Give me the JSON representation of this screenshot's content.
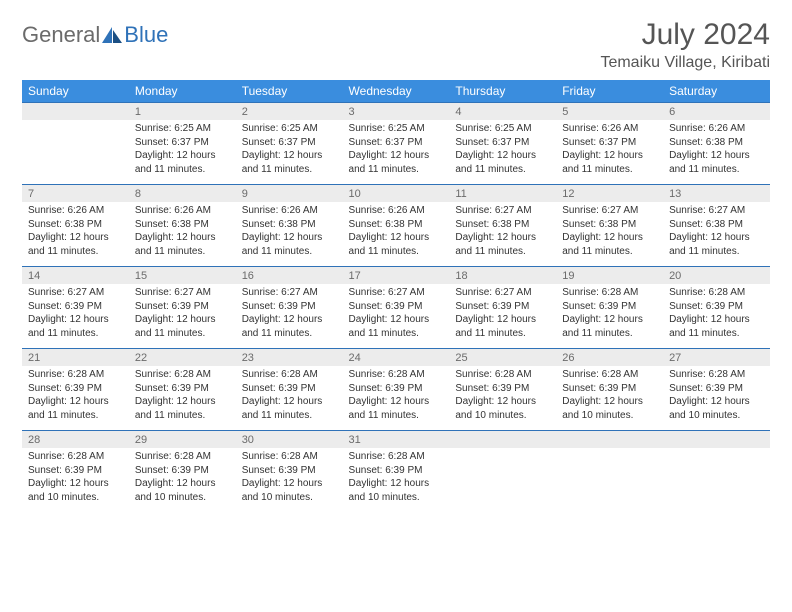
{
  "brand": {
    "part1": "General",
    "part2": "Blue"
  },
  "title": "July 2024",
  "location": "Temaiku Village, Kiribati",
  "colors": {
    "header_bg": "#3a8dde",
    "accent": "#2f72b8",
    "daynum_bg": "#ececec",
    "text": "#333333",
    "muted": "#6b6b6b"
  },
  "day_names": [
    "Sunday",
    "Monday",
    "Tuesday",
    "Wednesday",
    "Thursday",
    "Friday",
    "Saturday"
  ],
  "weeks": [
    {
      "nums": [
        "",
        "1",
        "2",
        "3",
        "4",
        "5",
        "6"
      ],
      "cells": [
        null,
        {
          "sr": "6:25 AM",
          "ss": "6:37 PM",
          "dl": "12 hours and 11 minutes."
        },
        {
          "sr": "6:25 AM",
          "ss": "6:37 PM",
          "dl": "12 hours and 11 minutes."
        },
        {
          "sr": "6:25 AM",
          "ss": "6:37 PM",
          "dl": "12 hours and 11 minutes."
        },
        {
          "sr": "6:25 AM",
          "ss": "6:37 PM",
          "dl": "12 hours and 11 minutes."
        },
        {
          "sr": "6:26 AM",
          "ss": "6:37 PM",
          "dl": "12 hours and 11 minutes."
        },
        {
          "sr": "6:26 AM",
          "ss": "6:38 PM",
          "dl": "12 hours and 11 minutes."
        }
      ]
    },
    {
      "nums": [
        "7",
        "8",
        "9",
        "10",
        "11",
        "12",
        "13"
      ],
      "cells": [
        {
          "sr": "6:26 AM",
          "ss": "6:38 PM",
          "dl": "12 hours and 11 minutes."
        },
        {
          "sr": "6:26 AM",
          "ss": "6:38 PM",
          "dl": "12 hours and 11 minutes."
        },
        {
          "sr": "6:26 AM",
          "ss": "6:38 PM",
          "dl": "12 hours and 11 minutes."
        },
        {
          "sr": "6:26 AM",
          "ss": "6:38 PM",
          "dl": "12 hours and 11 minutes."
        },
        {
          "sr": "6:27 AM",
          "ss": "6:38 PM",
          "dl": "12 hours and 11 minutes."
        },
        {
          "sr": "6:27 AM",
          "ss": "6:38 PM",
          "dl": "12 hours and 11 minutes."
        },
        {
          "sr": "6:27 AM",
          "ss": "6:38 PM",
          "dl": "12 hours and 11 minutes."
        }
      ]
    },
    {
      "nums": [
        "14",
        "15",
        "16",
        "17",
        "18",
        "19",
        "20"
      ],
      "cells": [
        {
          "sr": "6:27 AM",
          "ss": "6:39 PM",
          "dl": "12 hours and 11 minutes."
        },
        {
          "sr": "6:27 AM",
          "ss": "6:39 PM",
          "dl": "12 hours and 11 minutes."
        },
        {
          "sr": "6:27 AM",
          "ss": "6:39 PM",
          "dl": "12 hours and 11 minutes."
        },
        {
          "sr": "6:27 AM",
          "ss": "6:39 PM",
          "dl": "12 hours and 11 minutes."
        },
        {
          "sr": "6:27 AM",
          "ss": "6:39 PM",
          "dl": "12 hours and 11 minutes."
        },
        {
          "sr": "6:28 AM",
          "ss": "6:39 PM",
          "dl": "12 hours and 11 minutes."
        },
        {
          "sr": "6:28 AM",
          "ss": "6:39 PM",
          "dl": "12 hours and 11 minutes."
        }
      ]
    },
    {
      "nums": [
        "21",
        "22",
        "23",
        "24",
        "25",
        "26",
        "27"
      ],
      "cells": [
        {
          "sr": "6:28 AM",
          "ss": "6:39 PM",
          "dl": "12 hours and 11 minutes."
        },
        {
          "sr": "6:28 AM",
          "ss": "6:39 PM",
          "dl": "12 hours and 11 minutes."
        },
        {
          "sr": "6:28 AM",
          "ss": "6:39 PM",
          "dl": "12 hours and 11 minutes."
        },
        {
          "sr": "6:28 AM",
          "ss": "6:39 PM",
          "dl": "12 hours and 11 minutes."
        },
        {
          "sr": "6:28 AM",
          "ss": "6:39 PM",
          "dl": "12 hours and 10 minutes."
        },
        {
          "sr": "6:28 AM",
          "ss": "6:39 PM",
          "dl": "12 hours and 10 minutes."
        },
        {
          "sr": "6:28 AM",
          "ss": "6:39 PM",
          "dl": "12 hours and 10 minutes."
        }
      ]
    },
    {
      "nums": [
        "28",
        "29",
        "30",
        "31",
        "",
        "",
        ""
      ],
      "cells": [
        {
          "sr": "6:28 AM",
          "ss": "6:39 PM",
          "dl": "12 hours and 10 minutes."
        },
        {
          "sr": "6:28 AM",
          "ss": "6:39 PM",
          "dl": "12 hours and 10 minutes."
        },
        {
          "sr": "6:28 AM",
          "ss": "6:39 PM",
          "dl": "12 hours and 10 minutes."
        },
        {
          "sr": "6:28 AM",
          "ss": "6:39 PM",
          "dl": "12 hours and 10 minutes."
        },
        null,
        null,
        null
      ]
    }
  ],
  "labels": {
    "sunrise": "Sunrise:",
    "sunset": "Sunset:",
    "daylight": "Daylight:"
  }
}
